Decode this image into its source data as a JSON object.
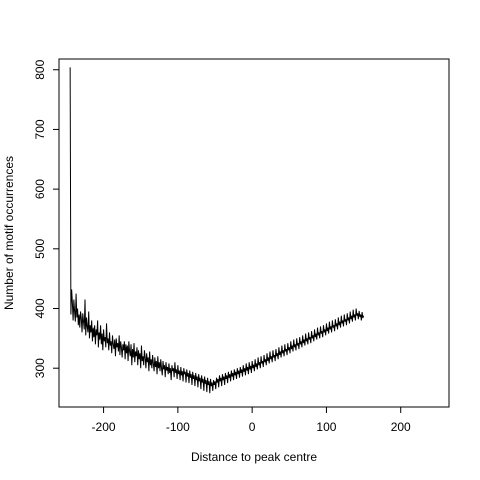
{
  "chart_data": {
    "type": "line",
    "title": "",
    "xlabel": "Distance to peak centre",
    "ylabel": "Number of motif occurrences",
    "xlim": [
      -260,
      265
    ],
    "ylim": [
      235,
      818
    ],
    "xticks": [
      -200,
      -100,
      0,
      100,
      200
    ],
    "xtick_labels": [
      "-200",
      "-100",
      "0",
      "100",
      "200"
    ],
    "yticks": [
      300,
      400,
      500,
      600,
      700,
      800
    ],
    "ytick_labels": [
      "300",
      "400",
      "500",
      "600",
      "700",
      "800"
    ],
    "grid": false,
    "legend": "none",
    "series": [
      {
        "x_start": -245,
        "x_step": 1,
        "y": [
          804,
          390,
          432,
          410,
          380,
          415,
          395,
          378,
          425,
          385,
          400,
          372,
          390,
          368,
          395,
          384,
          360,
          392,
          378,
          365,
          415,
          355,
          385,
          370,
          360,
          395,
          350,
          372,
          360,
          380,
          345,
          368,
          352,
          372,
          340,
          365,
          355,
          380,
          335,
          360,
          348,
          372,
          340,
          358,
          330,
          365,
          345,
          352,
          335,
          375,
          342,
          350,
          330,
          360,
          338,
          345,
          325,
          355,
          340,
          332,
          348,
          320,
          350,
          335,
          342,
          328,
          355,
          322,
          345,
          335,
          318,
          340,
          330,
          345,
          315,
          340,
          325,
          338,
          312,
          345,
          328,
          320,
          340,
          305,
          332,
          318,
          342,
          310,
          328,
          320,
          335,
          305,
          330,
          315,
          325,
          300,
          338,
          312,
          320,
          305,
          330,
          318,
          300,
          325,
          310,
          318,
          295,
          328,
          305,
          315,
          300,
          322,
          308,
          295,
          318,
          302,
          312,
          290,
          320,
          300,
          310,
          295,
          315,
          300,
          288,
          312,
          298,
          305,
          285,
          310,
          296,
          302,
          290,
          308,
          292,
          300,
          280,
          305,
          295,
          300,
          285,
          310,
          292,
          298,
          282,
          305,
          290,
          296,
          280,
          302,
          288,
          295,
          278,
          300,
          290,
          294,
          276,
          298,
          286,
          292,
          275,
          296,
          284,
          290,
          272,
          294,
          282,
          288,
          270,
          292,
          280,
          286,
          268,
          290,
          278,
          284,
          265,
          288,
          276,
          282,
          262,
          286,
          274,
          280,
          260,
          284,
          272,
          278,
          258,
          282,
          270,
          276,
          262,
          280,
          272,
          278,
          265,
          284,
          276,
          282,
          268,
          288,
          278,
          284,
          270,
          290,
          280,
          286,
          272,
          292,
          282,
          288,
          275,
          294,
          284,
          290,
          278,
          296,
          286,
          292,
          280,
          298,
          288,
          294,
          282,
          300,
          290,
          296,
          284,
          302,
          292,
          298,
          286,
          305,
          294,
          300,
          288,
          308,
          296,
          302,
          290,
          310,
          298,
          304,
          292,
          312,
          300,
          306,
          295,
          315,
          302,
          308,
          298,
          318,
          305,
          310,
          300,
          320,
          308,
          312,
          302,
          322,
          310,
          315,
          305,
          325,
          312,
          318,
          308,
          328,
          315,
          320,
          310,
          330,
          318,
          322,
          312,
          332,
          320,
          325,
          315,
          335,
          322,
          328,
          318,
          338,
          325,
          330,
          320,
          340,
          328,
          332,
          322,
          342,
          330,
          335,
          325,
          345,
          332,
          338,
          328,
          348,
          335,
          340,
          330,
          350,
          338,
          342,
          332,
          352,
          340,
          345,
          335,
          355,
          342,
          348,
          338,
          358,
          345,
          350,
          340,
          360,
          348,
          352,
          342,
          362,
          350,
          355,
          345,
          365,
          352,
          358,
          348,
          368,
          355,
          360,
          350,
          370,
          358,
          362,
          352,
          372,
          360,
          365,
          355,
          375,
          362,
          368,
          358,
          378,
          365,
          370,
          360,
          380,
          368,
          372,
          362,
          382,
          370,
          375,
          365,
          385,
          372,
          378,
          368,
          388,
          375,
          380,
          370,
          390,
          378,
          382,
          372,
          392,
          380,
          385,
          375,
          395,
          382,
          388,
          378,
          398,
          385,
          390,
          380,
          400,
          388,
          392,
          382,
          396,
          386,
          390,
          380,
          394,
          384,
          388
        ]
      }
    ]
  }
}
